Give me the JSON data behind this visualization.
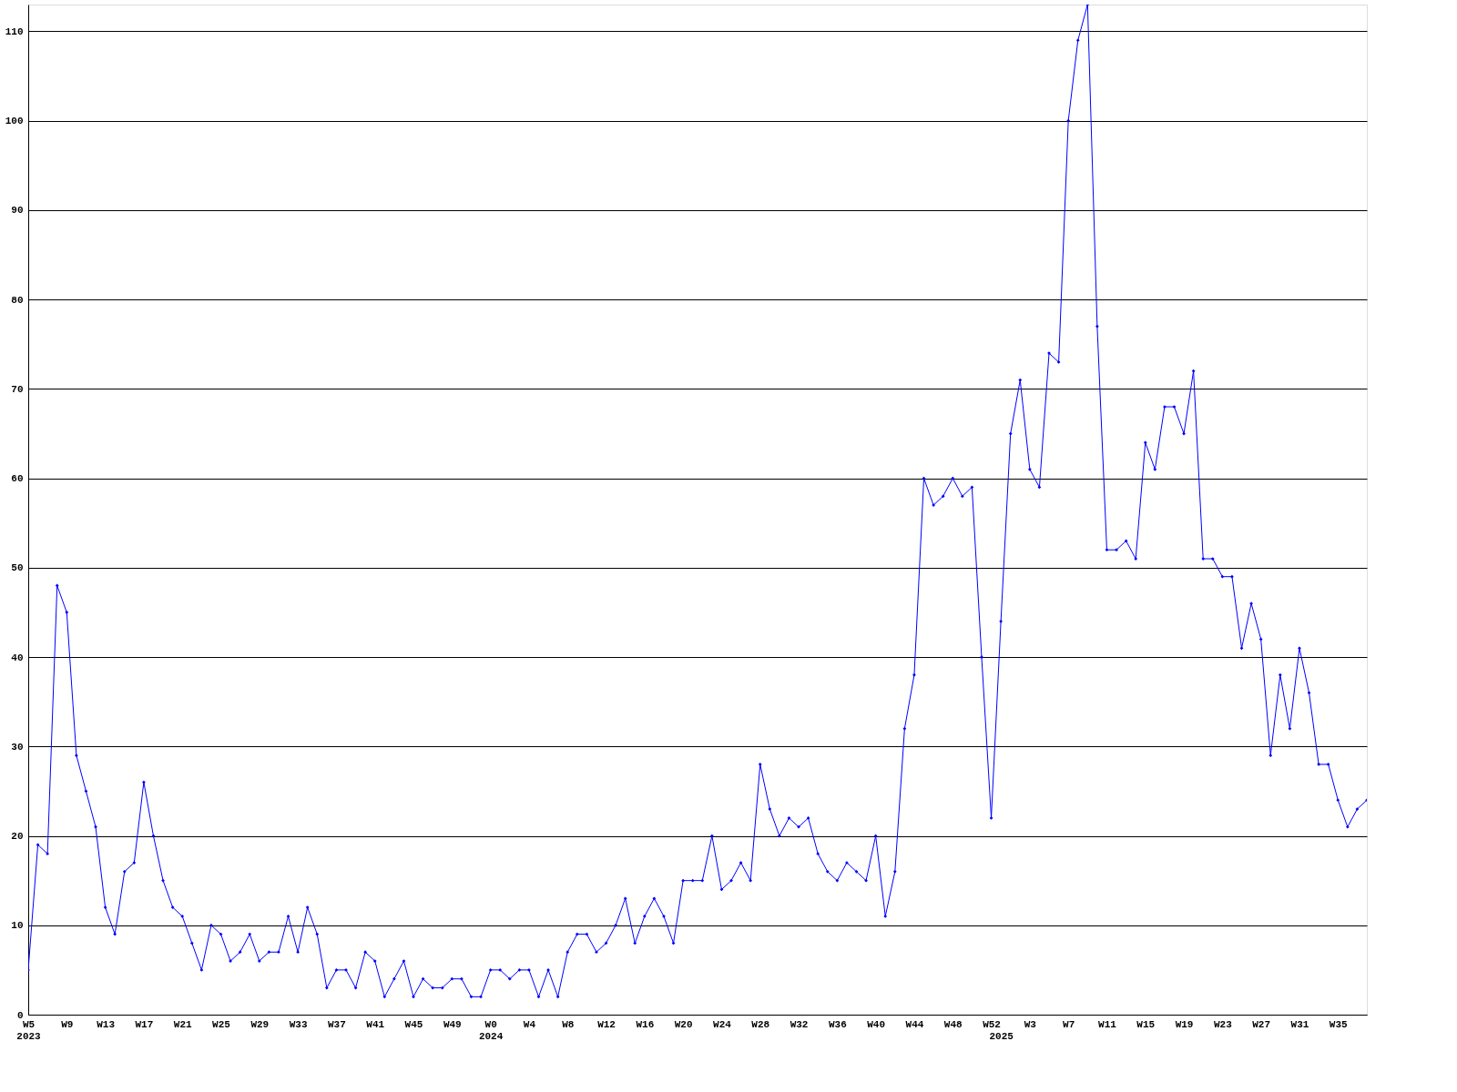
{
  "chart_data": {
    "type": "line",
    "categories": [
      "W5 2023",
      null,
      null,
      null,
      "W9",
      null,
      null,
      null,
      "W13",
      null,
      null,
      null,
      "W17",
      null,
      null,
      null,
      "W21",
      null,
      null,
      null,
      "W25",
      null,
      null,
      null,
      "W29",
      null,
      null,
      null,
      "W33",
      null,
      null,
      null,
      "W37",
      null,
      null,
      null,
      "W41",
      null,
      null,
      null,
      "W45",
      null,
      null,
      null,
      "W49",
      null,
      null,
      null,
      "W0 2024",
      null,
      null,
      null,
      "W4",
      null,
      null,
      null,
      "W8",
      null,
      null,
      null,
      "W12",
      null,
      null,
      null,
      "W16",
      null,
      null,
      null,
      "W20",
      null,
      null,
      null,
      "W24",
      null,
      null,
      null,
      "W28",
      null,
      null,
      null,
      "W32",
      null,
      null,
      null,
      "W36",
      null,
      null,
      null,
      "W40",
      null,
      null,
      null,
      "W44",
      null,
      null,
      null,
      "W48",
      null,
      null,
      null,
      "W52",
      "2025",
      null,
      null,
      "W3",
      null,
      null,
      null,
      "W7",
      null,
      null,
      null,
      "W11",
      null,
      null,
      null,
      "W15",
      null,
      null,
      null,
      "W19",
      null,
      null,
      null,
      "W23",
      null,
      null,
      null,
      "W27",
      null,
      null,
      null,
      "W31",
      null,
      null,
      null,
      "W35",
      null,
      null,
      null
    ],
    "series": [
      {
        "color": "#0000ff",
        "values": [
          5,
          19,
          18,
          48,
          45,
          29,
          25,
          21,
          12,
          9,
          16,
          17,
          26,
          20,
          15,
          12,
          11,
          8,
          5,
          10,
          9,
          6,
          7,
          9,
          6,
          7,
          7,
          11,
          7,
          12,
          9,
          3,
          5,
          5,
          3,
          7,
          6,
          2,
          4,
          6,
          2,
          4,
          3,
          3,
          4,
          4,
          2,
          2,
          5,
          5,
          4,
          5,
          5,
          2,
          5,
          2,
          7,
          9,
          9,
          7,
          8,
          10,
          13,
          8,
          11,
          13,
          11,
          8,
          15,
          15,
          15,
          20,
          14,
          15,
          17,
          15,
          28,
          23,
          20,
          22,
          21,
          22,
          18,
          16,
          15,
          17,
          16,
          15,
          20,
          11,
          16,
          32,
          38,
          60,
          57,
          58,
          60,
          58,
          59,
          40,
          22,
          44,
          65,
          71,
          61,
          59,
          74,
          73,
          100,
          109,
          113,
          77,
          52,
          52,
          53,
          51,
          64,
          61,
          68,
          68,
          65,
          72,
          51,
          51,
          49,
          49,
          41,
          46,
          42,
          29,
          38,
          32,
          41,
          36,
          28,
          28,
          24,
          21,
          23,
          24
        ]
      }
    ],
    "ylim": [
      0,
      113
    ],
    "yticks": [
      0,
      10,
      20,
      30,
      40,
      50,
      60,
      70,
      80,
      90,
      100,
      110
    ],
    "grid": "y",
    "marker": "diamond",
    "line_style": "solid"
  }
}
